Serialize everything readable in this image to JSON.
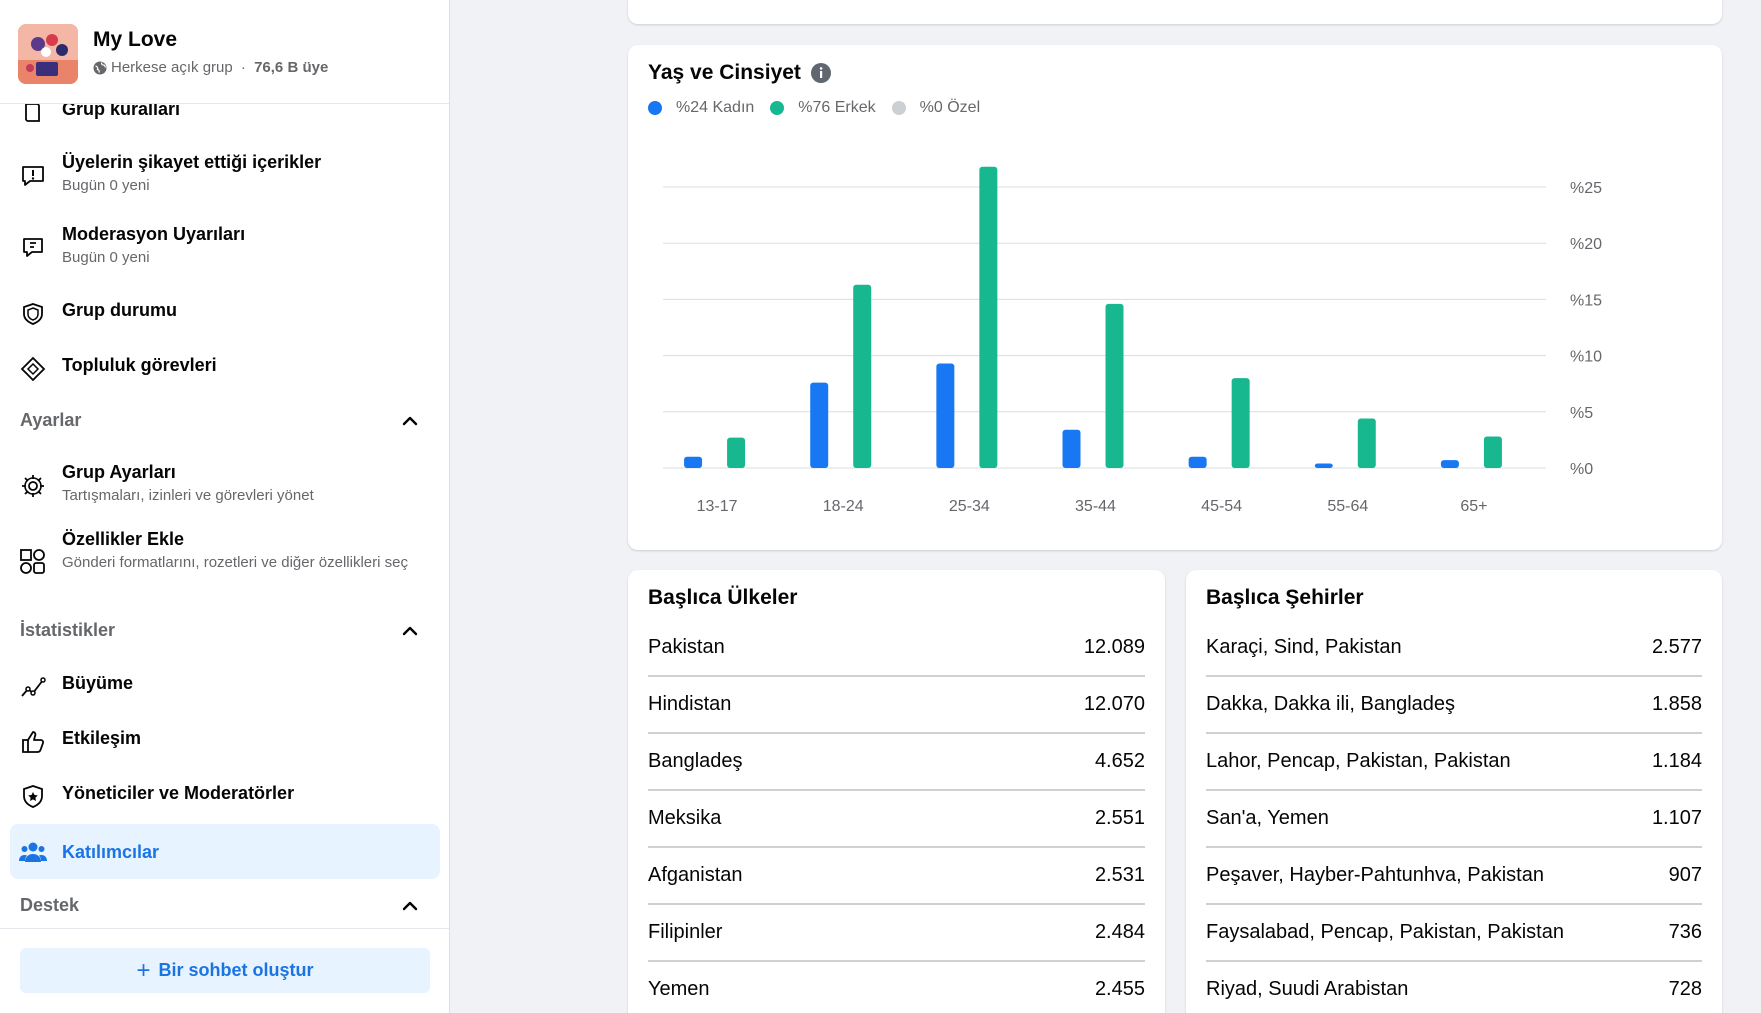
{
  "group": {
    "name": "My Love",
    "privacy": "Herkese açık grup",
    "separator": " · ",
    "members": "76,6 B üye"
  },
  "nav": {
    "rules": {
      "label": "Grup kuralları"
    },
    "reported": {
      "label": "Üyelerin şikayet ettiği içerikler",
      "sub": "Bugün 0 yeni"
    },
    "moderation": {
      "label": "Moderasyon Uyarıları",
      "sub": "Bugün 0 yeni"
    },
    "status": {
      "label": "Grup durumu"
    },
    "tasks": {
      "label": "Topluluk görevleri"
    },
    "settings_section": "Ayarlar",
    "group_settings": {
      "label": "Grup Ayarları",
      "sub": "Tartışmaları, izinleri ve görevleri yönet"
    },
    "features": {
      "label": "Özellikler Ekle",
      "sub": "Gönderi formatlarını, rozetleri ve diğer özellikleri seç"
    },
    "stats_section": "İstatistikler",
    "growth": {
      "label": "Büyüme"
    },
    "engagement": {
      "label": "Etkileşim"
    },
    "admins": {
      "label": "Yöneticiler ve Moderatörler"
    },
    "participants": {
      "label": "Katılımcılar"
    },
    "support_section": "Destek",
    "create_chat": "Bir sohbet oluştur"
  },
  "chart_card": {
    "title": "Yaş ve Cinsiyet",
    "legend": [
      {
        "label": "%24 Kadın",
        "color": "#1877f2"
      },
      {
        "label": "%76 Erkek",
        "color": "#17b890"
      },
      {
        "label": "%0 Özel",
        "color": "#ccd0d5"
      }
    ]
  },
  "chart_data": {
    "type": "bar",
    "categories": [
      "13-17",
      "18-24",
      "25-34",
      "35-44",
      "45-54",
      "55-64",
      "65+"
    ],
    "series": [
      {
        "name": "Kadın",
        "color": "#1877f2",
        "values": [
          1.0,
          7.6,
          9.3,
          3.4,
          1.0,
          0.4,
          0.7
        ]
      },
      {
        "name": "Erkek",
        "color": "#17b890",
        "values": [
          2.7,
          16.3,
          26.8,
          14.6,
          8.0,
          4.4,
          2.8
        ]
      }
    ],
    "ylim": [
      0,
      25
    ],
    "yticks": [
      "%0",
      "%5",
      "%10",
      "%15",
      "%20",
      "%25"
    ],
    "ytick_values": [
      0,
      5,
      10,
      15,
      20,
      25
    ],
    "grid": true
  },
  "countries": {
    "title": "Başlıca Ülkeler",
    "rows": [
      {
        "name": "Pakistan",
        "value": "12.089"
      },
      {
        "name": "Hindistan",
        "value": "12.070"
      },
      {
        "name": "Bangladeş",
        "value": "4.652"
      },
      {
        "name": "Meksika",
        "value": "2.551"
      },
      {
        "name": "Afganistan",
        "value": "2.531"
      },
      {
        "name": "Filipinler",
        "value": "2.484"
      },
      {
        "name": "Yemen",
        "value": "2.455"
      }
    ]
  },
  "cities": {
    "title": "Başlıca Şehirler",
    "rows": [
      {
        "name": "Karaçi, Sind, Pakistan",
        "value": "2.577"
      },
      {
        "name": "Dakka, Dakka ili, Bangladeş",
        "value": "1.858"
      },
      {
        "name": "Lahor, Pencap, Pakistan, Pakistan",
        "value": "1.184"
      },
      {
        "name": "San'a, Yemen",
        "value": "1.107"
      },
      {
        "name": "Peşaver, Hayber-Pahtunhva, Pakistan",
        "value": "907"
      },
      {
        "name": "Faysalabad, Pencap, Pakistan, Pakistan",
        "value": "736"
      },
      {
        "name": "Riyad, Suudi Arabistan",
        "value": "728"
      }
    ]
  }
}
